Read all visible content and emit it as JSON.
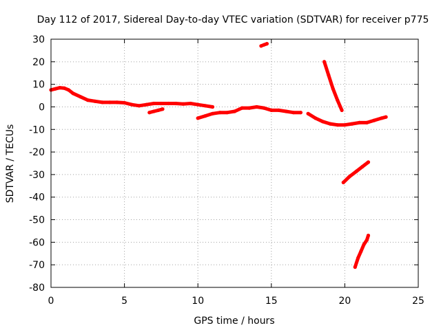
{
  "chart_data": {
    "type": "scatter",
    "title": "Day 112 of 2017, Sidereal Day-to-day VTEC variation (SDTVAR) for receiver p775",
    "xlabel": "GPS time / hours",
    "ylabel": "SDTVAR / TECUs",
    "xlim": [
      0,
      25
    ],
    "ylim": [
      -80,
      30
    ],
    "xticks": [
      0,
      5,
      10,
      15,
      20,
      25
    ],
    "yticks": [
      -80,
      -70,
      -60,
      -50,
      -40,
      -30,
      -20,
      -10,
      0,
      10,
      20,
      30
    ],
    "grid": true,
    "legend": "none",
    "color": "#ff0000",
    "series": [
      {
        "x": [
          0.0,
          0.3,
          0.6,
          0.9,
          1.2,
          1.5,
          2.0,
          2.5,
          3.0,
          3.5,
          4.0,
          4.5,
          5.0,
          5.5,
          6.0,
          6.5,
          7.0,
          7.5,
          8.0,
          8.5,
          9.0,
          9.5,
          10.0,
          10.5,
          11.0
        ],
        "y": [
          7.5,
          8.0,
          8.5,
          8.3,
          7.5,
          6.0,
          4.5,
          3.0,
          2.5,
          2.0,
          2.0,
          2.0,
          1.8,
          1.0,
          0.5,
          1.0,
          1.5,
          1.5,
          1.5,
          1.5,
          1.3,
          1.5,
          1.0,
          0.5,
          0.0
        ]
      },
      {
        "x": [
          6.7,
          7.0,
          7.3,
          7.6
        ],
        "y": [
          -2.5,
          -2.0,
          -1.5,
          -1.0
        ]
      },
      {
        "x": [
          10.0,
          10.5,
          11.0,
          11.5,
          12.0,
          12.5,
          13.0,
          13.5,
          14.0,
          14.5,
          15.0,
          15.5,
          16.0,
          16.5,
          17.0
        ],
        "y": [
          -5.0,
          -4.0,
          -3.0,
          -2.5,
          -2.5,
          -2.0,
          -0.5,
          -0.5,
          0.0,
          -0.5,
          -1.5,
          -1.5,
          -2.0,
          -2.5,
          -2.5
        ]
      },
      {
        "x": [
          14.3,
          14.5,
          14.7
        ],
        "y": [
          27.0,
          27.5,
          28.0
        ]
      },
      {
        "x": [
          17.5,
          18.0,
          18.5,
          19.0,
          19.5,
          20.0,
          20.5,
          21.0,
          21.5,
          22.0,
          22.5,
          22.8
        ],
        "y": [
          -3.0,
          -5.0,
          -6.5,
          -7.5,
          -8.0,
          -8.0,
          -7.5,
          -7.0,
          -7.0,
          -6.0,
          -5.0,
          -4.5
        ]
      },
      {
        "x": [
          18.6,
          18.9,
          19.2,
          19.5,
          19.8
        ],
        "y": [
          20.0,
          14.0,
          8.0,
          3.0,
          -1.5
        ]
      },
      {
        "x": [
          19.9,
          20.3,
          20.8,
          21.2,
          21.6
        ],
        "y": [
          -33.5,
          -31.0,
          -28.5,
          -26.5,
          -24.5
        ]
      },
      {
        "x": [
          20.7,
          20.9,
          21.1,
          21.3,
          21.5,
          21.6
        ],
        "y": [
          -71.0,
          -67.0,
          -64.0,
          -61.0,
          -59.0,
          -57.0
        ]
      }
    ]
  }
}
